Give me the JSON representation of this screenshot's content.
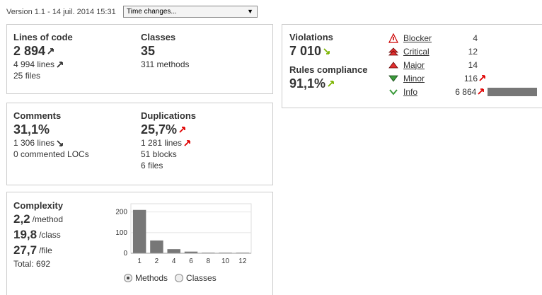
{
  "header": {
    "version": "Version 1.1 - 14 juil. 2014 15:31",
    "time_select": "Time changes..."
  },
  "size": {
    "loc_title": "Lines of code",
    "loc_value": "2 894",
    "lines": "4 994 lines",
    "files": "25 files",
    "classes_title": "Classes",
    "classes_value": "35",
    "methods": "311 methods"
  },
  "comments": {
    "title": "Comments",
    "value": "31,1%",
    "lines": "1 306 lines",
    "commented_locs": "0 commented LOCs"
  },
  "duplications": {
    "title": "Duplications",
    "value": "25,7%",
    "lines": "1 281 lines",
    "blocks": "51 blocks",
    "files": "6 files"
  },
  "complexity": {
    "title": "Complexity",
    "per_method_value": "2,2",
    "per_method_unit": "/method",
    "per_class_value": "19,8",
    "per_class_unit": "/class",
    "per_file_value": "27,7",
    "per_file_unit": "/file",
    "total": "Total: 692",
    "radio_methods": "Methods",
    "radio_classes": "Classes"
  },
  "rules": {
    "violations_title": "Violations",
    "violations_value": "7 010",
    "compliance_title": "Rules compliance",
    "compliance_value": "91,1%",
    "severities": [
      {
        "label": "Blocker",
        "count": "4",
        "icon": "blocker-icon"
      },
      {
        "label": "Critical",
        "count": "12",
        "icon": "critical-icon"
      },
      {
        "label": "Major",
        "count": "14",
        "icon": "major-icon"
      },
      {
        "label": "Minor",
        "count": "116",
        "icon": "minor-icon"
      },
      {
        "label": "Info",
        "count": "6 864",
        "icon": "info-icon"
      }
    ],
    "info_bar_fraction": 0.98
  },
  "colors": {
    "bar": "#777777",
    "trend_red": "#e00000",
    "trend_green": "#7cb400",
    "trend_black": "#333333"
  },
  "chart_data": {
    "type": "bar",
    "categories": [
      "1",
      "2",
      "4",
      "6",
      "8",
      "10",
      "12"
    ],
    "values": [
      210,
      62,
      20,
      8,
      3,
      3,
      3
    ],
    "yticks": [
      "0",
      "100",
      "200"
    ],
    "ylim": [
      0,
      240
    ],
    "xlabel": "",
    "ylabel": ""
  }
}
